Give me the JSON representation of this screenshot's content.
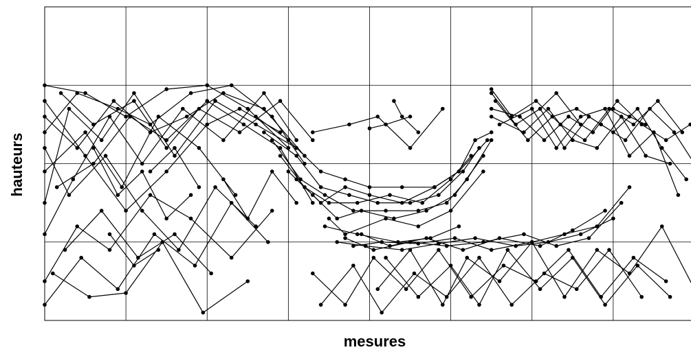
{
  "chart_data": {
    "type": "line",
    "title": "",
    "xlabel": "mesures",
    "ylabel": "hauteurs",
    "xlim": [
      0,
      8
    ],
    "ylim": [
      0,
      4
    ],
    "grid": true,
    "legend": "none",
    "line_color": "#000000",
    "marker_color": "#000000",
    "series": [
      {
        "x": [
          0,
          0.5,
          1,
          1.5,
          2,
          2.5,
          3
        ],
        "y": [
          3,
          2.9,
          2.6,
          2.95,
          3,
          2.7,
          2.2
        ]
      },
      {
        "x": [
          0,
          0.4,
          0.9,
          1.3,
          1.8,
          2.3,
          2.8,
          3.2
        ],
        "y": [
          2.4,
          2.9,
          2.7,
          2.5,
          2.9,
          3,
          2.6,
          2
        ]
      },
      {
        "x": [
          0,
          0.3,
          0.7,
          1.1,
          1.6,
          2.1,
          2.6,
          3.1
        ],
        "y": [
          1.5,
          2.7,
          2.3,
          2.9,
          2.1,
          2.8,
          2.5,
          2.2
        ]
      },
      {
        "x": [
          0,
          0.5,
          1,
          1.5,
          2,
          2.4,
          2.9
        ],
        "y": [
          2.8,
          2.1,
          1.4,
          1.9,
          2.5,
          2.7,
          2.4
        ]
      },
      {
        "x": [
          0,
          0.35,
          0.8,
          1.2,
          1.7,
          2.2,
          2.7,
          3.1
        ],
        "y": [
          1.1,
          1.8,
          2.6,
          2,
          2.7,
          2.3,
          2.9,
          2.3
        ]
      },
      {
        "x": [
          0,
          0.4,
          0.8,
          1.3,
          1.8,
          2.3,
          2.8
        ],
        "y": [
          0.5,
          1.2,
          0.9,
          1.6,
          1.3,
          0.8,
          1.4
        ]
      },
      {
        "x": [
          0,
          0.45,
          0.9,
          1.35,
          1.85,
          2.3,
          2.75
        ],
        "y": [
          0.2,
          0.8,
          0.4,
          1.1,
          0.7,
          1.5,
          1
        ]
      },
      {
        "x": [
          0,
          0.3,
          0.75,
          1.2,
          1.65,
          2.1,
          2.6
        ],
        "y": [
          2.2,
          1.6,
          2.1,
          1.4,
          0.9,
          1.7,
          1.2
        ]
      },
      {
        "x": [
          0,
          0.5,
          0.95,
          1.4,
          1.9,
          2.35
        ],
        "y": [
          1.9,
          2.4,
          1.7,
          2.6,
          2.2,
          1.6
        ]
      },
      {
        "x": [
          0,
          0.4,
          0.85,
          1.3,
          1.75,
          2.2,
          2.7,
          3.2
        ],
        "y": [
          2.6,
          2.2,
          2.8,
          2.4,
          2.6,
          2.9,
          2.7,
          2.1
        ]
      },
      {
        "x": [
          0.2,
          0.6,
          1.1,
          1.5,
          1.9,
          2.4,
          2.9,
          3.3
        ],
        "y": [
          2.9,
          2.5,
          2.8,
          2.2,
          2.7,
          2.4,
          2.8,
          2.3
        ]
      },
      {
        "x": [
          0.1,
          0.55,
          1,
          1.45,
          1.95,
          2.5
        ],
        "y": [
          0.6,
          0.3,
          0.35,
          1,
          0.1,
          0.5
        ]
      },
      {
        "x": [
          0.25,
          0.7,
          1.15,
          1.6,
          2.05
        ],
        "y": [
          0.9,
          1.4,
          0.8,
          1.1,
          0.6
        ]
      },
      {
        "x": [
          0.15,
          0.6,
          1.05,
          1.5,
          2,
          2.45,
          2.9,
          3.3
        ],
        "y": [
          1.7,
          2,
          2.6,
          2.3,
          2.8,
          2.5,
          2.2,
          1.5
        ]
      },
      {
        "x": [
          2.6,
          3,
          3.4,
          3.7,
          4,
          4.4,
          4.8,
          5.1,
          5.3,
          5.5
        ],
        "y": [
          2.6,
          2.3,
          1.9,
          1.8,
          1.7,
          1.7,
          1.7,
          1.9,
          2.3,
          2.4
        ]
      },
      {
        "x": [
          2.7,
          3.1,
          3.4,
          3.75,
          4.1,
          4.5,
          4.85,
          5.15,
          5.35
        ],
        "y": [
          2.4,
          2.1,
          1.7,
          1.6,
          1.5,
          1.5,
          1.6,
          1.9,
          2.2
        ]
      },
      {
        "x": [
          2.8,
          3.15,
          3.45,
          3.8,
          4.2,
          4.6,
          4.95,
          5.2,
          5.5
        ],
        "y": [
          2.3,
          1.8,
          1.6,
          1.4,
          1.4,
          1.4,
          1.5,
          1.8,
          2.3
        ]
      },
      {
        "x": [
          2.9,
          3.2,
          3.5,
          3.85,
          4.25,
          4.65,
          5,
          5.25
        ],
        "y": [
          2.1,
          1.7,
          1.5,
          1.5,
          1.6,
          1.5,
          1.8,
          2.1
        ]
      },
      {
        "x": [
          3,
          3.3,
          3.6,
          3.9,
          4.3,
          4.7,
          5.05,
          5.4
        ],
        "y": [
          1.9,
          1.6,
          1.3,
          1.4,
          1.3,
          1.4,
          1.6,
          2.1
        ]
      },
      {
        "x": [
          3.1,
          3.4,
          3.7,
          4,
          4.4,
          4.8,
          5.1,
          5.45
        ],
        "y": [
          1.8,
          1.5,
          1.7,
          1.6,
          1.5,
          1.7,
          1.9,
          2.3
        ]
      },
      {
        "x": [
          3.5,
          3.7,
          4.2,
          4.6,
          5,
          5.4
        ],
        "y": [
          1.3,
          1.1,
          1.3,
          1.2,
          1.4,
          1.9
        ]
      },
      {
        "x": [
          3.3,
          3.75,
          4.1,
          4.5,
          4.9
        ],
        "y": [
          2.4,
          2.5,
          2.6,
          2.2,
          2.7
        ]
      },
      {
        "x": [
          3.45,
          3.85,
          4.35,
          4.75,
          5.1
        ],
        "y": [
          1.2,
          1.1,
          1.0,
          1.05,
          1.2
        ]
      },
      {
        "x": [
          3.6,
          3.95,
          4.4,
          4.85,
          5.3,
          5.8,
          6.2,
          6.6,
          7
        ],
        "y": [
          1,
          0.95,
          0.9,
          0.98,
          1.05,
          0.95,
          1,
          1.1,
          1.3
        ]
      },
      {
        "x": [
          3.7,
          4.05,
          4.5,
          4.95,
          5.4,
          5.9,
          6.3,
          6.7,
          7.1
        ],
        "y": [
          1.05,
          0.9,
          1,
          0.95,
          1,
          1.1,
          0.95,
          1.05,
          1.5
        ]
      },
      {
        "x": [
          3.8,
          4.15,
          4.6,
          5.05,
          5.5,
          6,
          6.4,
          6.8,
          7.2
        ],
        "y": [
          0.95,
          1,
          0.98,
          1.05,
          0.9,
          1,
          1.1,
          1.2,
          1.7
        ]
      },
      {
        "x": [
          3.9,
          4.25,
          4.7,
          5.15,
          5.6,
          6.1,
          6.5,
          6.9
        ],
        "y": [
          1.1,
          0.95,
          1.05,
          0.9,
          1.05,
          0.95,
          1.15,
          1.4
        ]
      },
      {
        "x": [
          5.5,
          5.8,
          6.1,
          6.4,
          6.7,
          7,
          7.3,
          7.6,
          7.9
        ],
        "y": [
          2.9,
          2.5,
          2.7,
          2.2,
          2.6,
          2.4,
          2.7,
          2.2,
          1.8
        ]
      },
      {
        "x": [
          5.5,
          5.85,
          6.15,
          6.45,
          6.75,
          7.05,
          7.35,
          7.65,
          7.95
        ],
        "y": [
          2.7,
          2.6,
          2.3,
          2.6,
          2.4,
          2.8,
          2.5,
          2.3,
          2.5
        ]
      },
      {
        "x": [
          5.5,
          5.9,
          6.2,
          6.5,
          6.8,
          7.1,
          7.4,
          7.7
        ],
        "y": [
          2.6,
          2.4,
          2.7,
          2.3,
          2.2,
          2.6,
          2.1,
          2
        ]
      },
      {
        "x": [
          5.55,
          5.95,
          6.25,
          6.55,
          6.85,
          7.15,
          7.45,
          7.75,
          8
        ],
        "y": [
          2.8,
          2.3,
          2.6,
          2.7,
          2.5,
          2.3,
          2.7,
          2.4,
          2
        ]
      },
      {
        "x": [
          5.6,
          6,
          6.3,
          6.6,
          6.9,
          7.2,
          7.5,
          7.8
        ],
        "y": [
          2.5,
          2.7,
          2.2,
          2.6,
          2.7,
          2.1,
          2.4,
          1.6
        ]
      },
      {
        "x": [
          5.5,
          5.75,
          6.05,
          6.35,
          6.65,
          6.95,
          7.25,
          7.55,
          7.85
        ],
        "y": [
          2.95,
          2.6,
          2.8,
          2.5,
          2.3,
          2.7,
          2.5,
          2.8,
          2.4
        ]
      },
      {
        "x": [
          4.1,
          4.5,
          4.9,
          5.2,
          5.6,
          6,
          6.4,
          6.8,
          7.2,
          7.6,
          8
        ],
        "y": [
          0.4,
          0.9,
          0.2,
          0.8,
          0.5,
          1,
          0.3,
          0.9,
          0.6,
          1.2,
          0.4
        ]
      },
      {
        "x": [
          4.2,
          4.6,
          5,
          5.35,
          5.7,
          6.1,
          6.5,
          6.9,
          7.3,
          7.7
        ],
        "y": [
          0.8,
          0.3,
          0.7,
          0.2,
          0.9,
          0.4,
          0.8,
          0.2,
          0.7,
          0.3
        ]
      },
      {
        "x": [
          3.3,
          3.7,
          4.05,
          4.45,
          4.85,
          5.25,
          5.65,
          6.05,
          6.45,
          6.85,
          7.25,
          7.65
        ],
        "y": [
          0.6,
          0.2,
          0.8,
          0.4,
          0.9,
          0.3,
          0.7,
          0.5,
          0.9,
          0.3,
          0.8,
          0.5
        ]
      },
      {
        "x": [
          3.4,
          3.8,
          4.15,
          4.55,
          4.95,
          5.35,
          5.75,
          6.15,
          6.55,
          6.95,
          7.35
        ],
        "y": [
          0.2,
          0.7,
          0.1,
          0.6,
          0.3,
          0.8,
          0.2,
          0.6,
          0.4,
          0.9,
          0.3
        ]
      },
      {
        "x": [
          4,
          4.2,
          4.5
        ],
        "y": [
          2.45,
          2.5,
          2.6
        ]
      },
      {
        "x": [
          4.3,
          4.4,
          4.6
        ],
        "y": [
          2.8,
          2.6,
          2.4
        ]
      },
      {
        "x": [
          6.1,
          6.3,
          6.6
        ],
        "y": [
          2.7,
          2.9,
          2.5
        ]
      },
      {
        "x": [
          7,
          7.2,
          7.4
        ],
        "y": [
          2.7,
          2.6,
          2.5
        ]
      },
      {
        "x": [
          1.3,
          1.6,
          1.9
        ],
        "y": [
          1.9,
          2.2,
          1.7
        ]
      },
      {
        "x": [
          0.8,
          1.1,
          1.4
        ],
        "y": [
          1.1,
          0.7,
          0.9
        ]
      },
      {
        "x": [
          2.2,
          2.5,
          2.8,
          3.1
        ],
        "y": [
          1.8,
          1.3,
          1.9,
          1.5
        ]
      },
      {
        "x": [
          0.6,
          0.9,
          1.2,
          1.5,
          1.8
        ],
        "y": [
          2.2,
          1.6,
          1.9,
          1.3,
          1.6
        ]
      }
    ]
  }
}
